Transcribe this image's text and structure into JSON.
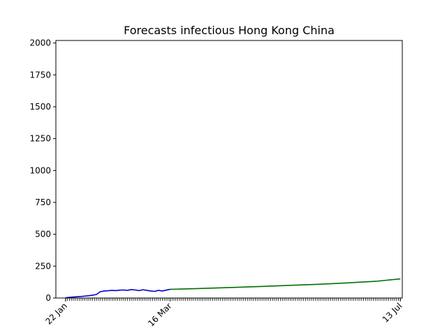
{
  "chart_data": {
    "type": "line",
    "title": "Forecasts infectious Hong Kong China",
    "xlabel": "",
    "ylabel": "",
    "x_axis": {
      "type": "date",
      "range": [
        "2020-01-17",
        "2020-07-14"
      ],
      "ticks": [
        {
          "date": "2020-01-22",
          "label": "22 Jan"
        },
        {
          "date": "2020-03-16",
          "label": "16 Mar"
        },
        {
          "date": "2020-07-13",
          "label": "13 Jul"
        }
      ],
      "minor_ticks": "daily"
    },
    "y_axis": {
      "range": [
        0,
        2020
      ],
      "ticks": [
        0,
        250,
        500,
        750,
        1000,
        1250,
        1500,
        1750,
        2000
      ],
      "tick_labels": [
        "0",
        "250",
        "500",
        "750",
        "1000",
        "1250",
        "1500",
        "1750",
        "2000"
      ]
    },
    "grid": false,
    "legend": "none",
    "series": [
      {
        "color": "#0000cc",
        "x": [
          "2020-01-22",
          "2020-01-24",
          "2020-01-26",
          "2020-01-28",
          "2020-01-30",
          "2020-02-01",
          "2020-02-03",
          "2020-02-05",
          "2020-02-07",
          "2020-02-09",
          "2020-02-11",
          "2020-02-13",
          "2020-02-15",
          "2020-02-17",
          "2020-02-19",
          "2020-02-21",
          "2020-02-23",
          "2020-02-25",
          "2020-02-27",
          "2020-02-29",
          "2020-03-02",
          "2020-03-04",
          "2020-03-06",
          "2020-03-08",
          "2020-03-10",
          "2020-03-12",
          "2020-03-14",
          "2020-03-16"
        ],
        "y": [
          2,
          5,
          8,
          10,
          12,
          15,
          18,
          22,
          28,
          50,
          55,
          57,
          60,
          58,
          62,
          63,
          60,
          66,
          63,
          58,
          65,
          60,
          55,
          52,
          60,
          55,
          62,
          68
        ]
      },
      {
        "color": "#007000",
        "x": [
          "2020-03-16",
          "2020-04-01",
          "2020-04-15",
          "2020-05-01",
          "2020-05-15",
          "2020-06-01",
          "2020-06-15",
          "2020-07-01",
          "2020-07-13"
        ],
        "y": [
          68,
          75,
          82,
          90,
          98,
          108,
          118,
          132,
          150
        ]
      }
    ]
  }
}
